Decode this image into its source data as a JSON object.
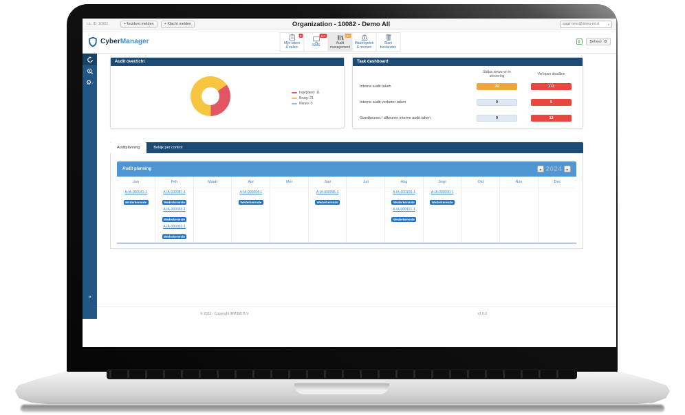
{
  "topbar": {
    "license": "Lic. ID: 10082",
    "incident_button": "+ Incident melden",
    "complaint_button": "+ Klacht melden",
    "title": "Organization - 10082 - Demo All",
    "user_email": "sjaak-isms@demo-ml.nl",
    "caret": "▾"
  },
  "header": {
    "brand": {
      "cyber": "Cyber",
      "manager": "Manager"
    },
    "nav_items": [
      {
        "line1": "Mijn taken",
        "line2": "& zaken",
        "badge": "8",
        "badge_color": "#e2413a",
        "active": false
      },
      {
        "line1": "ISMS",
        "line2": "",
        "badge": "117",
        "badge_color": "#e2413a",
        "active": false
      },
      {
        "line1": "Audit",
        "line2": "management",
        "badge": "21",
        "badge_color": "#f0a63f",
        "active": true
      },
      {
        "line1": "Maatregelen",
        "line2": "& normen",
        "badge": "",
        "badge_color": "",
        "active": false
      },
      {
        "line1": "Stam",
        "line2": "bestanden",
        "badge": "",
        "badge_color": "",
        "active": false
      }
    ],
    "beheer_label": "Beheer",
    "gear_glyph": "⚙"
  },
  "sidebar": {
    "icons": [
      "sync",
      "zoom-in",
      "settings"
    ],
    "submenu_arrow": "›",
    "collapse_label": "»"
  },
  "audit_overview": {
    "title": "Audit overzicht",
    "chart_data": {
      "type": "pie",
      "labels": [
        "Ingepland",
        "Bezig",
        "Nieuw"
      ],
      "values": [
        11,
        21,
        0
      ],
      "colors": [
        "#e25663",
        "#f7c53f",
        "#7fc3ea"
      ],
      "legend": [
        "Ingepland: 11",
        "Bezig: 21",
        "Nieuw: 0"
      ],
      "start_angle": 55,
      "donut_hole": true,
      "legend_position": "right"
    }
  },
  "task_dashboard": {
    "title": "Taak dashboard",
    "columns": [
      "Status nieuw en in uitvoering",
      "Verlopen deadline"
    ],
    "rows": [
      {
        "label": "Interne audit taken",
        "status": "31",
        "status_bg": "#f0a63f",
        "status_fg": "#ffffff",
        "deadline": "173"
      },
      {
        "label": "Interne audit verbeter taken",
        "status": "0",
        "status_bg": "#dfe8f0",
        "status_fg": "#333333",
        "deadline": "5"
      },
      {
        "label": "Goedkeuren / afkeuren interne audit taken",
        "status": "0",
        "status_bg": "#dfe8f0",
        "status_fg": "#333333",
        "deadline": "13"
      }
    ],
    "deadline_bg": "#e8473f"
  },
  "planning": {
    "tabs": [
      {
        "label": "Auditplanning",
        "active": true
      },
      {
        "label": "Bekijk per control",
        "active": false
      }
    ],
    "panel_title": "Audit planning",
    "year": "2024",
    "prev_arrow": "◄",
    "next_arrow": "►",
    "months": [
      "Jan",
      "Feb",
      "Maart",
      "Apr",
      "Mei",
      "Juni",
      "Juli",
      "Aug",
      "Sept",
      "Okt",
      "Nov",
      "Dec"
    ],
    "cells": [
      [
        {
          "id": "A-IA-000041-1",
          "tag": "Wederkerende"
        }
      ],
      [
        {
          "id": "A-IA-000087-1",
          "tag": "Wederkerende"
        },
        {
          "id": "A-IA-000093-1",
          "tag": "Wederkerende"
        },
        {
          "id": "A-IA-000092-1",
          "tag": "Wederkerende"
        }
      ],
      [],
      [
        {
          "id": "A-IA-000094-1",
          "tag": "Wederkerende"
        }
      ],
      [],
      [
        {
          "id": "A-IA-000095-1",
          "tag": "Wederkerende"
        }
      ],
      [],
      [
        {
          "id": "A-IA-000100-1",
          "tag": "Wederkerende"
        },
        {
          "id": "A-IA-000101-1",
          "tag": "Wederkerende"
        }
      ],
      [
        {
          "id": "A-IA-000090-1",
          "tag": "Wederkerende"
        }
      ],
      [],
      [],
      []
    ]
  },
  "footer": {
    "copyright": "© 2023 - Copyright IRM360 B.V.",
    "version": "v2.0.0"
  }
}
